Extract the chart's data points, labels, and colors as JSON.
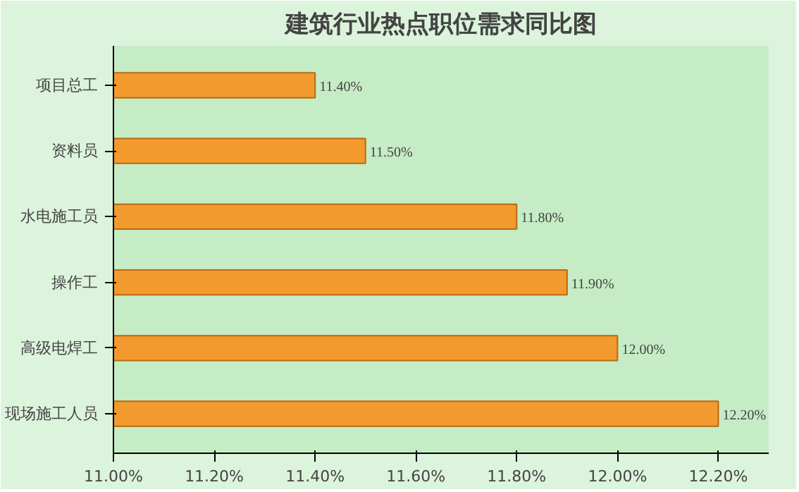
{
  "chart_data": {
    "type": "bar",
    "orientation": "horizontal",
    "title": "建筑行业热点职位需求同比图",
    "categories": [
      "项目总工",
      "资料员",
      "水电施工员",
      "操作工",
      "高级电焊工",
      "现场施工人员"
    ],
    "values": [
      11.4,
      11.5,
      11.8,
      11.9,
      12.0,
      12.2
    ],
    "value_labels": [
      "11.40%",
      "11.50%",
      "11.80%",
      "11.90%",
      "12.00%",
      "12.20%"
    ],
    "color": "#f39a2e",
    "xlim": [
      11.0,
      12.3
    ],
    "xticks": [
      {
        "value": 11.0,
        "label": "11.00%"
      },
      {
        "value": 11.2,
        "label": "11.20%"
      },
      {
        "value": 11.4,
        "label": "11.40%"
      },
      {
        "value": 11.6,
        "label": "11.60%"
      },
      {
        "value": 11.8,
        "label": "11.80%"
      },
      {
        "value": 12.0,
        "label": "12.00%"
      },
      {
        "value": 12.2,
        "label": "12.20%"
      }
    ],
    "grid": false
  }
}
